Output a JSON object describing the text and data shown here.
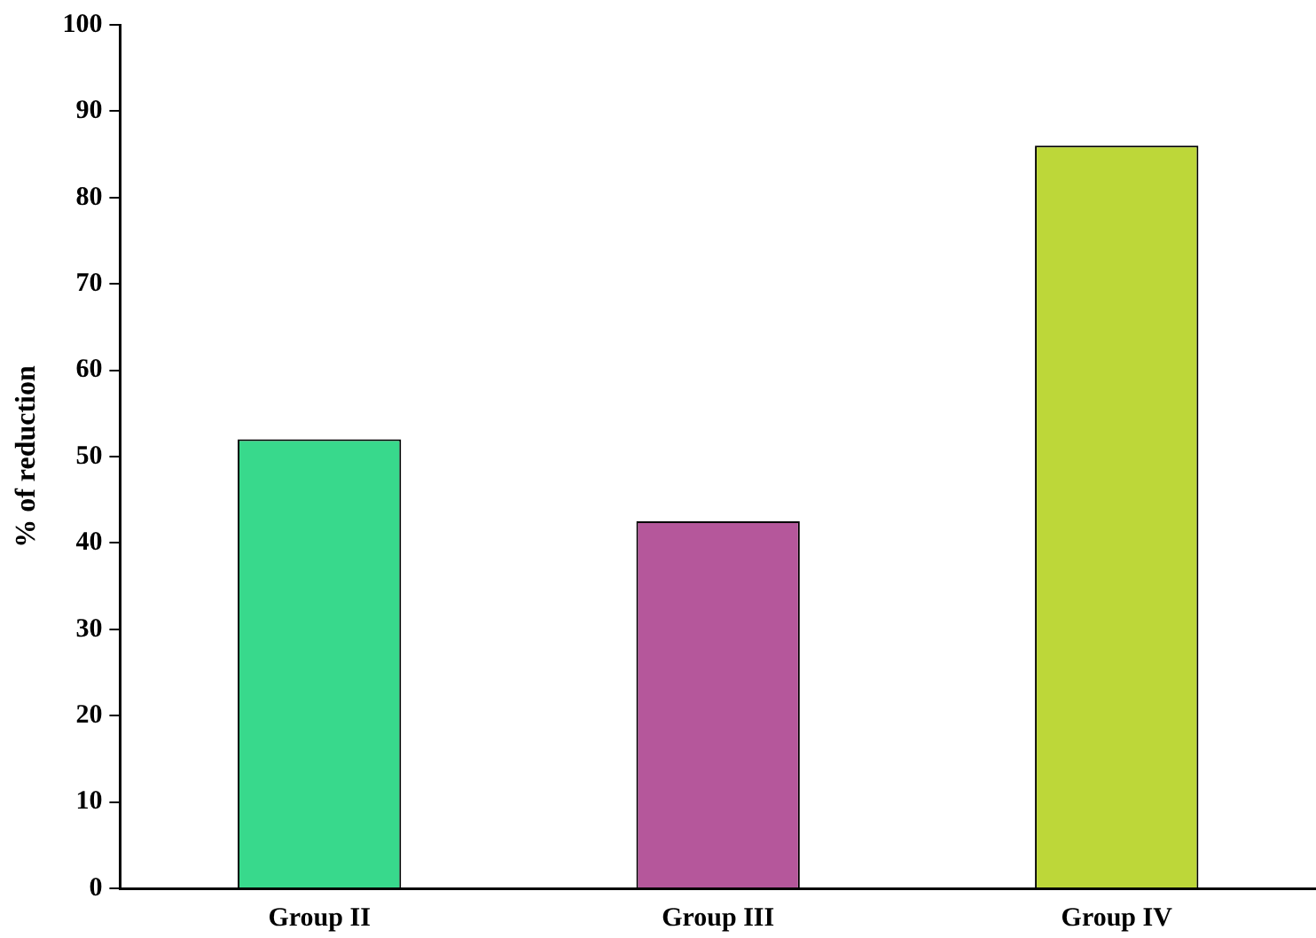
{
  "chart_data": {
    "type": "bar",
    "ylabel": "% of reduction",
    "categories": [
      "Group II",
      "Group III",
      "Group IV"
    ],
    "values": [
      52,
      42.5,
      86
    ],
    "colors": [
      "#38d98c",
      "#b5579b",
      "#bdd739"
    ],
    "ylim": [
      0,
      100
    ],
    "yticks": [
      0,
      10,
      20,
      30,
      40,
      50,
      60,
      70,
      80,
      90,
      100
    ],
    "grid": false,
    "legend": false
  }
}
